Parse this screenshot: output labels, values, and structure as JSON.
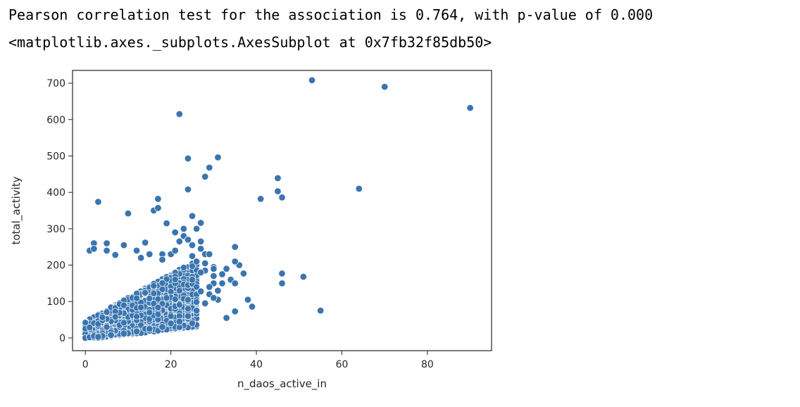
{
  "output_lines": [
    "Pearson correlation test for the association is 0.764, with p-value of 0.000",
    "<matplotlib.axes._subplots.AxesSubplot at 0x7fb32f85db50>"
  ],
  "chart_data": {
    "type": "scatter",
    "title": "",
    "xlabel": "n_daos_active_in",
    "ylabel": "total_activity",
    "xlim": [
      -3,
      95
    ],
    "ylim": [
      -35,
      735
    ],
    "xticks": [
      0,
      20,
      40,
      60,
      80
    ],
    "yticks": [
      0,
      100,
      200,
      300,
      400,
      500,
      600,
      700
    ],
    "grid": false,
    "point_color": "#3a75af",
    "point_edge_color": "#ffffff",
    "dense_cluster_note": "Dense cluster of thousands of overlapping points for x 0-30, y 0-250 (individual values not readable)",
    "points": [
      [
        22,
        615
      ],
      [
        53,
        708
      ],
      [
        70,
        690
      ],
      [
        90,
        632
      ],
      [
        24,
        493
      ],
      [
        29,
        468
      ],
      [
        31,
        496
      ],
      [
        28,
        443
      ],
      [
        45,
        439
      ],
      [
        45,
        403
      ],
      [
        46,
        386
      ],
      [
        41,
        382
      ],
      [
        64,
        410
      ],
      [
        24,
        408
      ],
      [
        3,
        374
      ],
      [
        10,
        342
      ],
      [
        17,
        382
      ],
      [
        16,
        350
      ],
      [
        17,
        357
      ],
      [
        25,
        335
      ],
      [
        27,
        316
      ],
      [
        19,
        315
      ],
      [
        21,
        290
      ],
      [
        23,
        300
      ],
      [
        35,
        250
      ],
      [
        36,
        200
      ],
      [
        35,
        210
      ],
      [
        33,
        190
      ],
      [
        37,
        177
      ],
      [
        30,
        195
      ],
      [
        28,
        185
      ],
      [
        32,
        175
      ],
      [
        34,
        160
      ],
      [
        35,
        150
      ],
      [
        30,
        150
      ],
      [
        29,
        120
      ],
      [
        31,
        105
      ],
      [
        38,
        105
      ],
      [
        39,
        86
      ],
      [
        35,
        73
      ],
      [
        33,
        55
      ],
      [
        46,
        177
      ],
      [
        46,
        150
      ],
      [
        51,
        168
      ],
      [
        55,
        75
      ],
      [
        0,
        0
      ],
      [
        1,
        2
      ],
      [
        2,
        5
      ],
      [
        1,
        240
      ],
      [
        2,
        260
      ],
      [
        2,
        245
      ],
      [
        5,
        260
      ],
      [
        5,
        240
      ],
      [
        7,
        228
      ],
      [
        9,
        255
      ],
      [
        12,
        240
      ],
      [
        14,
        262
      ],
      [
        13,
        220
      ],
      [
        15,
        230
      ],
      [
        18,
        230
      ],
      [
        18,
        215
      ],
      [
        20,
        230
      ],
      [
        22,
        265
      ],
      [
        23,
        280
      ],
      [
        21,
        240
      ],
      [
        25,
        255
      ],
      [
        24,
        270
      ],
      [
        26,
        300
      ],
      [
        27,
        265
      ],
      [
        25,
        225
      ],
      [
        28,
        230
      ],
      [
        26,
        210
      ],
      [
        27,
        245
      ],
      [
        29,
        230
      ],
      [
        28,
        205
      ],
      [
        30,
        190
      ],
      [
        27,
        180
      ],
      [
        25,
        160
      ],
      [
        30,
        170
      ],
      [
        32,
        150
      ],
      [
        29,
        140
      ],
      [
        31,
        130
      ],
      [
        27,
        128
      ],
      [
        30,
        110
      ],
      [
        28,
        95
      ],
      [
        26,
        75
      ],
      [
        24,
        60
      ],
      [
        22,
        45
      ],
      [
        20,
        40
      ],
      [
        18,
        30
      ],
      [
        15,
        25
      ],
      [
        12,
        18
      ],
      [
        9,
        12
      ],
      [
        6,
        8
      ],
      [
        4,
        5
      ],
      [
        3,
        3
      ]
    ]
  }
}
